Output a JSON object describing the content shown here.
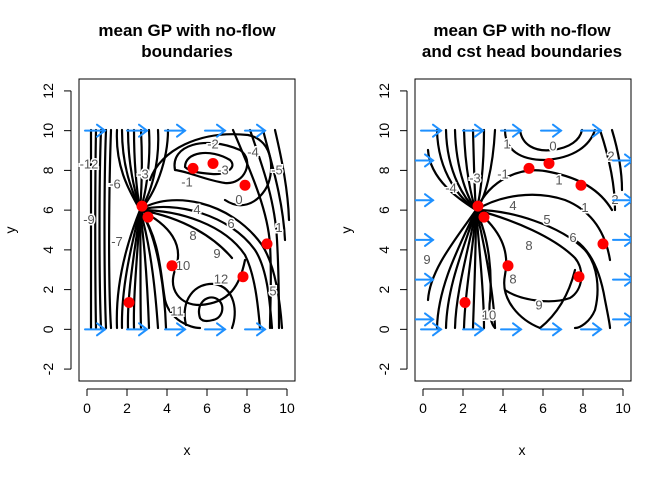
{
  "chart_data": [
    {
      "type": "contour",
      "title_lines": [
        "mean GP with no-flow",
        "boundaries"
      ],
      "xlabel": "x",
      "ylabel": "y",
      "xlim": [
        -0.4,
        10.4
      ],
      "ylim": [
        -2.6,
        12.6
      ],
      "xticks": [
        0,
        2,
        4,
        6,
        8,
        10
      ],
      "yticks": [
        -2,
        0,
        2,
        4,
        6,
        8,
        10,
        12
      ],
      "points": [
        [
          5.3,
          8.1
        ],
        [
          6.3,
          8.35
        ],
        [
          7.9,
          7.25
        ],
        [
          2.75,
          6.2
        ],
        [
          3.05,
          5.65
        ],
        [
          9.0,
          4.3
        ],
        [
          4.25,
          3.2
        ],
        [
          7.8,
          2.65
        ],
        [
          2.1,
          1.35
        ]
      ],
      "point_color": "#ff0000",
      "arrow_color": "#1e90ff",
      "arrows": [
        [
          0.4,
          10
        ],
        [
          2.5,
          10
        ],
        [
          4.4,
          10
        ],
        [
          6.4,
          10
        ],
        [
          8.4,
          10
        ],
        [
          0.4,
          0
        ],
        [
          2.5,
          0
        ],
        [
          4.4,
          0
        ],
        [
          6.4,
          0
        ],
        [
          8.4,
          0
        ]
      ],
      "contour_labels": [
        {
          "text": "-2",
          "x": 6.3,
          "y": 9.3
        },
        {
          "text": "-1",
          "x": 5.0,
          "y": 7.4
        },
        {
          "text": "-3",
          "x": 6.8,
          "y": 8.0
        },
        {
          "text": "-4",
          "x": 8.3,
          "y": 8.9
        },
        {
          "text": "-5",
          "x": 9.5,
          "y": 8.0
        },
        {
          "text": "0",
          "x": 7.6,
          "y": 6.5
        },
        {
          "text": "-12",
          "x": 0.1,
          "y": 8.3
        },
        {
          "text": "-6",
          "x": 1.4,
          "y": 7.3
        },
        {
          "text": "-3",
          "x": 2.8,
          "y": 7.8
        },
        {
          "text": "-9",
          "x": 0.1,
          "y": 5.5
        },
        {
          "text": "-7",
          "x": 1.5,
          "y": 4.4
        },
        {
          "text": "1",
          "x": 9.6,
          "y": 5.1
        },
        {
          "text": "4",
          "x": 5.5,
          "y": 6.0
        },
        {
          "text": "6",
          "x": 7.2,
          "y": 5.3
        },
        {
          "text": "8",
          "x": 5.3,
          "y": 4.7
        },
        {
          "text": "9",
          "x": 6.5,
          "y": 3.8
        },
        {
          "text": "10",
          "x": 4.8,
          "y": 3.2
        },
        {
          "text": "12",
          "x": 6.7,
          "y": 2.5
        },
        {
          "text": "11",
          "x": 4.5,
          "y": 0.9
        },
        {
          "text": "5",
          "x": 9.3,
          "y": 1.9
        }
      ]
    },
    {
      "type": "contour",
      "title_lines": [
        "mean GP with no-flow",
        "and cst head boundaries"
      ],
      "xlabel": "x",
      "ylabel": "y",
      "xlim": [
        -0.4,
        10.4
      ],
      "ylim": [
        -2.6,
        12.6
      ],
      "xticks": [
        0,
        2,
        4,
        6,
        8,
        10
      ],
      "yticks": [
        -2,
        0,
        2,
        4,
        6,
        8,
        10,
        12
      ],
      "points": [
        [
          5.3,
          8.1
        ],
        [
          6.3,
          8.35
        ],
        [
          7.9,
          7.25
        ],
        [
          2.75,
          6.2
        ],
        [
          3.05,
          5.65
        ],
        [
          9.0,
          4.3
        ],
        [
          4.25,
          3.2
        ],
        [
          7.8,
          2.65
        ],
        [
          2.1,
          1.35
        ]
      ],
      "point_color": "#ff0000",
      "arrow_color": "#1e90ff",
      "arrows": [
        [
          0.4,
          10
        ],
        [
          2.5,
          10
        ],
        [
          4.4,
          10
        ],
        [
          6.4,
          10
        ],
        [
          8.4,
          10
        ],
        [
          0.4,
          0
        ],
        [
          2.5,
          0
        ],
        [
          4.4,
          0
        ],
        [
          6.4,
          0
        ],
        [
          8.4,
          0
        ],
        [
          0,
          8.5
        ],
        [
          0,
          6.5
        ],
        [
          0,
          4.5
        ],
        [
          0,
          2.5
        ],
        [
          0,
          0.5
        ],
        [
          10,
          8.5
        ],
        [
          10,
          6.5
        ],
        [
          10,
          4.5
        ],
        [
          10,
          2.5
        ],
        [
          10,
          0.5
        ]
      ],
      "contour_labels": [
        {
          "text": "1",
          "x": 4.2,
          "y": 9.3
        },
        {
          "text": "0",
          "x": 6.5,
          "y": 9.2
        },
        {
          "text": "1",
          "x": 6.8,
          "y": 7.5
        },
        {
          "text": "-1",
          "x": 4.0,
          "y": 7.8
        },
        {
          "text": "-4",
          "x": 1.4,
          "y": 7.1
        },
        {
          "text": "-3",
          "x": 2.6,
          "y": 7.6
        },
        {
          "text": "2",
          "x": 9.4,
          "y": 8.7
        },
        {
          "text": "4",
          "x": 4.5,
          "y": 6.2
        },
        {
          "text": "5",
          "x": 6.2,
          "y": 5.5
        },
        {
          "text": "1",
          "x": 8.1,
          "y": 6.1
        },
        {
          "text": "6",
          "x": 7.5,
          "y": 4.6
        },
        {
          "text": "8",
          "x": 5.3,
          "y": 4.2
        },
        {
          "text": "2",
          "x": 9.6,
          "y": 6.5
        },
        {
          "text": "9",
          "x": 0.2,
          "y": 3.5
        },
        {
          "text": "9",
          "x": 5.8,
          "y": 1.2
        },
        {
          "text": "8",
          "x": 4.5,
          "y": 2.5
        },
        {
          "text": "10",
          "x": 3.3,
          "y": 0.7
        }
      ]
    }
  ]
}
